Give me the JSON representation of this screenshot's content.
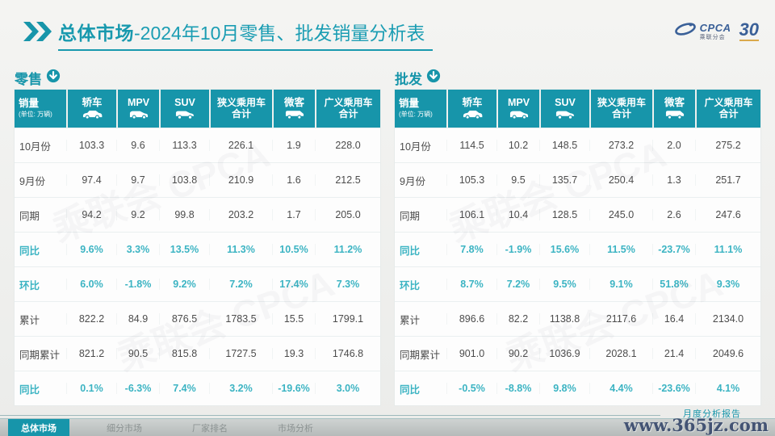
{
  "header": {
    "title_bold": "总体市场",
    "title_rest": "-2024年10月零售、批发销量分析表",
    "cpca_logo": "CPCA",
    "cpca_logo_sub": "乘联分会",
    "anniversary_logo": "30"
  },
  "colors": {
    "accent_teal": "#1795aa",
    "percent_teal": "#3cb4c3",
    "logo_blue": "#27518f",
    "text_dark": "#4c4c4c"
  },
  "watermark_text": "乘联会 CPCA",
  "tables": [
    {
      "section_label": "零售",
      "corner_label": "销量",
      "corner_sub": "(单位: 万辆)",
      "columns": [
        {
          "label": "轿车",
          "icon": "sedan-icon"
        },
        {
          "label": "MPV",
          "icon": "mpv-icon"
        },
        {
          "label": "SUV",
          "icon": "suv-icon"
        },
        {
          "label": "狭义乘用车 合计",
          "icon": null
        },
        {
          "label": "微客",
          "icon": "van-icon"
        },
        {
          "label": "广义乘用车 合计",
          "icon": null
        }
      ],
      "rows": [
        {
          "label": "10月份",
          "type": "normal",
          "values": [
            "103.3",
            "9.6",
            "113.3",
            "226.1",
            "1.9",
            "228.0"
          ]
        },
        {
          "label": "9月份",
          "type": "normal",
          "values": [
            "97.4",
            "9.7",
            "103.8",
            "210.9",
            "1.6",
            "212.5"
          ]
        },
        {
          "label": "同期",
          "type": "normal",
          "values": [
            "94.2",
            "9.2",
            "99.8",
            "203.2",
            "1.7",
            "205.0"
          ]
        },
        {
          "label": "同比",
          "type": "percent",
          "values": [
            "9.6%",
            "3.3%",
            "13.5%",
            "11.3%",
            "10.5%",
            "11.2%"
          ]
        },
        {
          "label": "环比",
          "type": "percent",
          "values": [
            "6.0%",
            "-1.8%",
            "9.2%",
            "7.2%",
            "17.4%",
            "7.3%"
          ]
        },
        {
          "label": "累计",
          "type": "normal",
          "values": [
            "822.2",
            "84.9",
            "876.5",
            "1783.5",
            "15.5",
            "1799.1"
          ]
        },
        {
          "label": "同期累计",
          "type": "normal",
          "values": [
            "821.2",
            "90.5",
            "815.8",
            "1727.5",
            "19.3",
            "1746.8"
          ]
        },
        {
          "label": "同比",
          "type": "percent",
          "values": [
            "0.1%",
            "-6.3%",
            "7.4%",
            "3.2%",
            "-19.6%",
            "3.0%"
          ]
        }
      ]
    },
    {
      "section_label": "批发",
      "corner_label": "销量",
      "corner_sub": "(单位: 万辆)",
      "columns": [
        {
          "label": "轿车",
          "icon": "sedan-icon"
        },
        {
          "label": "MPV",
          "icon": "mpv-icon"
        },
        {
          "label": "SUV",
          "icon": "suv-icon"
        },
        {
          "label": "狭义乘用车 合计",
          "icon": null
        },
        {
          "label": "微客",
          "icon": "van-icon"
        },
        {
          "label": "广义乘用车 合计",
          "icon": null
        }
      ],
      "rows": [
        {
          "label": "10月份",
          "type": "normal",
          "values": [
            "114.5",
            "10.2",
            "148.5",
            "273.2",
            "2.0",
            "275.2"
          ]
        },
        {
          "label": "9月份",
          "type": "normal",
          "values": [
            "105.3",
            "9.5",
            "135.7",
            "250.4",
            "1.3",
            "251.7"
          ]
        },
        {
          "label": "同期",
          "type": "normal",
          "values": [
            "106.1",
            "10.4",
            "128.5",
            "245.0",
            "2.6",
            "247.6"
          ]
        },
        {
          "label": "同比",
          "type": "percent",
          "values": [
            "7.8%",
            "-1.9%",
            "15.6%",
            "11.5%",
            "-23.7%",
            "11.1%"
          ]
        },
        {
          "label": "环比",
          "type": "percent",
          "values": [
            "8.7%",
            "7.2%",
            "9.5%",
            "9.1%",
            "51.8%",
            "9.3%"
          ]
        },
        {
          "label": "累计",
          "type": "normal",
          "values": [
            "896.6",
            "82.2",
            "1138.8",
            "2117.6",
            "16.4",
            "2134.0"
          ]
        },
        {
          "label": "同期累计",
          "type": "normal",
          "values": [
            "901.0",
            "90.2",
            "1036.9",
            "2028.1",
            "21.4",
            "2049.6"
          ]
        },
        {
          "label": "同比",
          "type": "percent",
          "values": [
            "-0.5%",
            "-8.8%",
            "9.8%",
            "4.4%",
            "-23.6%",
            "4.1%"
          ]
        }
      ]
    }
  ],
  "footer": {
    "source_text": "月度分析报告",
    "site_watermark": "www.365jz.com",
    "tabs": [
      {
        "label": "总体市场",
        "active": true
      },
      {
        "label": "细分市场",
        "active": false
      },
      {
        "label": "厂家排名",
        "active": false
      },
      {
        "label": "市场分析",
        "active": false
      }
    ]
  }
}
